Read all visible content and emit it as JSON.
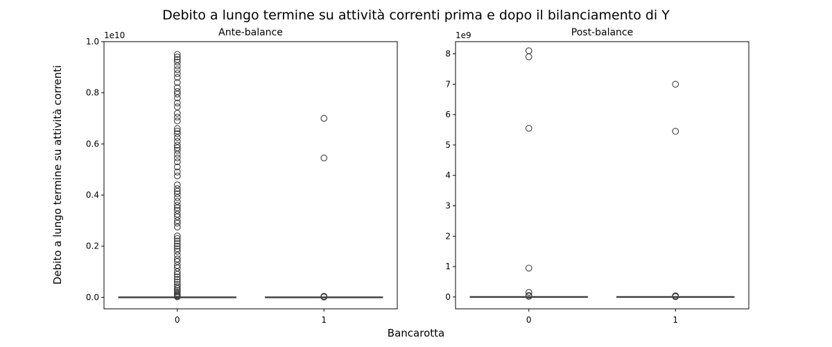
{
  "figure": {
    "title": "Debito a lungo termine su attività correnti prima e dopo il bilanciamento di Y",
    "xlabel": "Bancarotta",
    "ylabel": "Debito a lungo termine su attività correnti"
  },
  "chart_data": [
    {
      "type": "box",
      "title": "Ante-balance",
      "categories": [
        "0",
        "1"
      ],
      "offset_text": "1e10",
      "y_scale": 10000000000,
      "ylim": [
        -0.045,
        1.0
      ],
      "yticks": [
        0.0,
        0.2,
        0.4,
        0.6,
        0.8,
        1.0
      ],
      "ytick_labels": [
        "0.0",
        "0.2",
        "0.4",
        "0.6",
        "0.8",
        "1.0"
      ],
      "grid": false,
      "box_color": "#3b75af",
      "line_color": "#3d3d3d",
      "boxes": [
        {
          "category": "0",
          "whisker_low": 0.0,
          "q1": 0.0,
          "median": 0.0,
          "q3": 0.0,
          "whisker_high": 0.001,
          "outliers": [
            0.95,
            0.94,
            0.93,
            0.92,
            0.905,
            0.89,
            0.875,
            0.86,
            0.84,
            0.82,
            0.805,
            0.795,
            0.78,
            0.76,
            0.745,
            0.72,
            0.705,
            0.69,
            0.66,
            0.65,
            0.64,
            0.625,
            0.61,
            0.595,
            0.585,
            0.575,
            0.56,
            0.545,
            0.53,
            0.51,
            0.49,
            0.475,
            0.44,
            0.425,
            0.415,
            0.405,
            0.39,
            0.375,
            0.36,
            0.35,
            0.34,
            0.325,
            0.315,
            0.3,
            0.29,
            0.275,
            0.24,
            0.23,
            0.22,
            0.21,
            0.2,
            0.19,
            0.18,
            0.165,
            0.15,
            0.14,
            0.125,
            0.115,
            0.1,
            0.09,
            0.08,
            0.07,
            0.06,
            0.05,
            0.042,
            0.035,
            0.028,
            0.022,
            0.016,
            0.011,
            0.007,
            0.004,
            0.002
          ]
        },
        {
          "category": "1",
          "whisker_low": 0.0,
          "q1": 0.0,
          "median": 0.0,
          "q3": 0.0,
          "whisker_high": 0.0005,
          "outliers": [
            0.7,
            0.545,
            0.004,
            0.003,
            0.002,
            0.001
          ]
        }
      ]
    },
    {
      "type": "box",
      "title": "Post-balance",
      "categories": [
        "0",
        "1"
      ],
      "offset_text": "1e9",
      "y_scale": 1000000000,
      "ylim": [
        -0.39,
        8.4
      ],
      "yticks": [
        0,
        1,
        2,
        3,
        4,
        5,
        6,
        7,
        8
      ],
      "ytick_labels": [
        "0",
        "1",
        "2",
        "3",
        "4",
        "5",
        "6",
        "7",
        "8"
      ],
      "grid": false,
      "box_color": "#3b75af",
      "line_color": "#3d3d3d",
      "boxes": [
        {
          "category": "0",
          "whisker_low": 0.0,
          "q1": 0.0,
          "median": 0.0,
          "q3": 0.0,
          "whisker_high": 0.005,
          "outliers": [
            8.1,
            7.9,
            5.55,
            0.95,
            0.15,
            0.05,
            0.02
          ]
        },
        {
          "category": "1",
          "whisker_low": 0.0,
          "q1": 0.0,
          "median": 0.0,
          "q3": 0.0,
          "whisker_high": 0.005,
          "outliers": [
            7.0,
            5.45,
            0.04,
            0.02,
            0.01
          ]
        }
      ]
    }
  ]
}
